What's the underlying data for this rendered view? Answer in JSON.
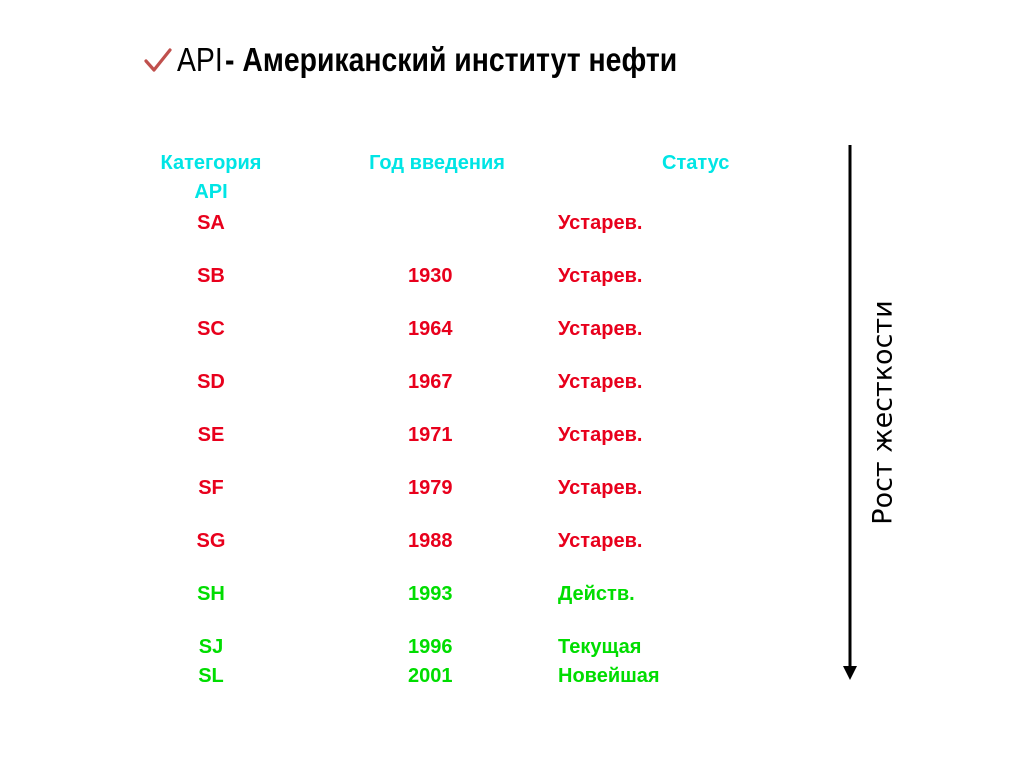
{
  "title": {
    "abbr": "API",
    "rest": " - Американский институт нефти",
    "icon": "checkmark-icon"
  },
  "table": {
    "headers": {
      "category_line1": "Категория",
      "category_line2": "API",
      "year": "Год введения",
      "status": "Статус"
    },
    "rows": [
      {
        "category": "SA",
        "year": "",
        "status": "Устарев."
      },
      {
        "category": "SB",
        "year": "1930",
        "status": "Устарев."
      },
      {
        "category": "SC",
        "year": "1964",
        "status": "Устарев."
      },
      {
        "category": "SD",
        "year": "1967",
        "status": "Устарев."
      },
      {
        "category": "SE",
        "year": "1971",
        "status": "Устарев."
      },
      {
        "category": "SF",
        "year": "1979",
        "status": "Устарев."
      },
      {
        "category": "SG",
        "year": "1988",
        "status": "Устарев."
      },
      {
        "category": "SH",
        "year": "1993",
        "status": "Действ."
      },
      {
        "category": "SJ",
        "year": "1996",
        "status": "Текущая"
      },
      {
        "category": "SL",
        "year": "2001",
        "status": "Новейшая"
      }
    ]
  },
  "side_label": "Рост жесткости",
  "colors": {
    "header": "#00e5e5",
    "obsolete": "#e8001c",
    "active": "#00dd00"
  }
}
